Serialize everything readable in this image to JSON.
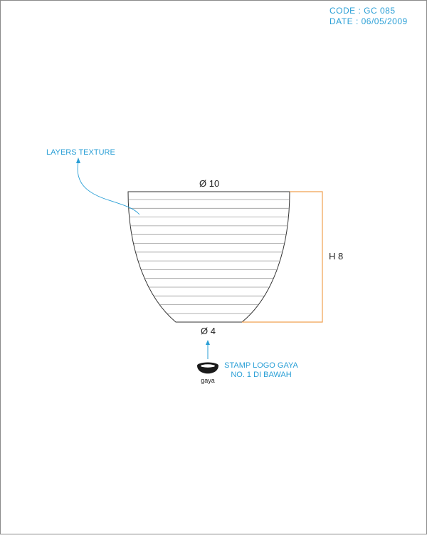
{
  "header": {
    "code": "CODE : GC 085",
    "date": "DATE : 06/05/2009"
  },
  "annotations": {
    "texture": "LAYERS TEXTURE",
    "stamp_line1": "STAMP LOGO GAYA",
    "stamp_line2": "NO. 1 DI BAWAH"
  },
  "dimensions": {
    "top_diameter": "Ø 10",
    "bottom_diameter": "Ø 4",
    "height": "H 8"
  },
  "logo": {
    "text": "gaya"
  },
  "colors": {
    "annotation": "#2a9fd6",
    "height_dimension": "#f0a050",
    "outline": "#333333"
  }
}
